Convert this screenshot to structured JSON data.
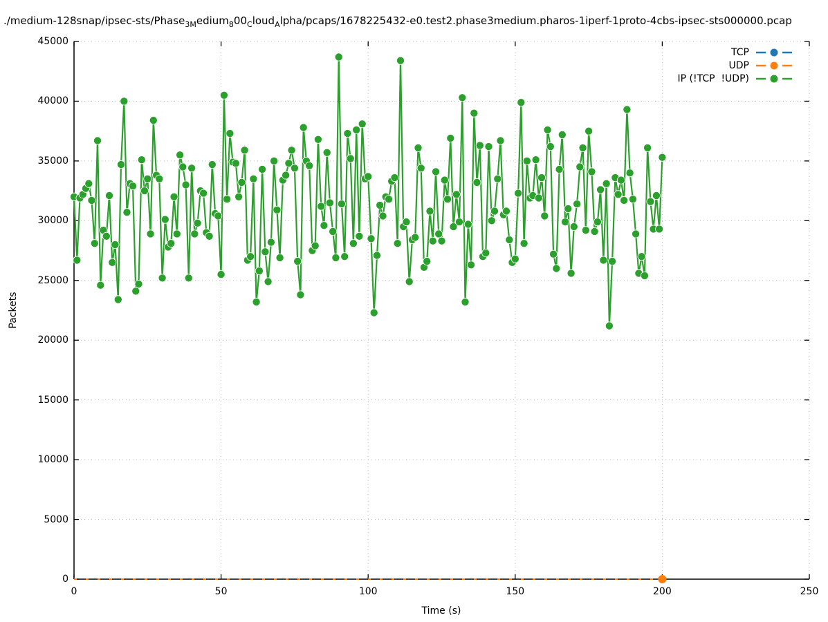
{
  "title": {
    "segments": [
      {
        "text": "./medium-128snap/ipsec-sts/Phase",
        "sub": false
      },
      {
        "text": "3M",
        "sub": true
      },
      {
        "text": "edium",
        "sub": false
      },
      {
        "text": "8",
        "sub": true
      },
      {
        "text": "00",
        "sub": false
      },
      {
        "text": "C",
        "sub": true
      },
      {
        "text": "loud",
        "sub": false
      },
      {
        "text": "A",
        "sub": true
      },
      {
        "text": "lpha/pcaps/1678225432-e0.test2.phase3medium.pharos-1iperf-1proto-4cbs-ipsec-sts000000.pcap",
        "sub": false
      }
    ]
  },
  "legend": {
    "items": [
      {
        "label": "TCP",
        "color": "#1f77b4"
      },
      {
        "label": "UDP",
        "color": "#ff7f0e"
      },
      {
        "label": "IP (!TCP  !UDP)",
        "color": "#2ca02c"
      }
    ]
  },
  "chart_data": {
    "type": "line",
    "title_plain": "./medium-128snap/ipsec-sts/Phase_3Medium_800_Cloud_Alpha/pcaps/1678225432-e0.test2.phase3medium.pharos-1iperf-1proto-4cbs-ipsec-sts000000.pcap",
    "xlabel": "Time (s)",
    "ylabel": "Packets",
    "xlim": [
      0,
      250
    ],
    "ylim": [
      0,
      45000
    ],
    "x_ticks": [
      0,
      50,
      100,
      150,
      200,
      250
    ],
    "y_ticks": [
      0,
      5000,
      10000,
      15000,
      20000,
      25000,
      30000,
      35000,
      40000,
      45000
    ],
    "grid": "dotted",
    "grid_color": "#bdbdbd",
    "legend_position": "top-right-inside",
    "series": [
      {
        "name": "TCP",
        "color": "#1f77b4",
        "style": "flat",
        "x": [
          0,
          200
        ],
        "y": [
          0,
          0
        ]
      },
      {
        "name": "UDP",
        "color": "#ff7f0e",
        "style": "flat",
        "x": [
          0,
          200
        ],
        "y": [
          0,
          0
        ],
        "end_marker": true
      },
      {
        "name": "IP (!TCP  !UDP)",
        "color": "#2ca02c",
        "x_start": 0,
        "x_step": 1,
        "values": [
          32000,
          26700,
          31900,
          32200,
          32700,
          33100,
          31700,
          28100,
          36700,
          24600,
          29200,
          28700,
          32100,
          26500,
          28000,
          23400,
          34700,
          40000,
          30700,
          33100,
          32900,
          24100,
          24700,
          35100,
          32500,
          33500,
          28900,
          38400,
          33800,
          33500,
          25200,
          30100,
          27800,
          28100,
          32000,
          28900,
          35500,
          34500,
          33000,
          25200,
          34400,
          28900,
          29800,
          32500,
          32300,
          29000,
          28700,
          34700,
          30600,
          30400,
          25500,
          40500,
          31800,
          37300,
          34900,
          34800,
          32000,
          33200,
          35900,
          26700,
          27000,
          33500,
          23200,
          25800,
          34300,
          27400,
          24900,
          28200,
          35000,
          30900,
          26900,
          33400,
          33800,
          34800,
          35900,
          34400,
          26600,
          23800,
          37800,
          35000,
          34600,
          27500,
          27900,
          36800,
          31200,
          29600,
          35700,
          31500,
          29100,
          26900,
          43700,
          31400,
          27000,
          37300,
          35200,
          28100,
          37600,
          28700,
          38100,
          33500,
          33700,
          28500,
          22300,
          27100,
          31300,
          30400,
          32000,
          31800,
          33300,
          33600,
          28100,
          43400,
          29500,
          29900,
          24900,
          28400,
          28600,
          36100,
          34400,
          26100,
          26600,
          30800,
          28300,
          34100,
          28900,
          28300,
          33400,
          31800,
          36900,
          29500,
          32200,
          29900,
          40300,
          23200,
          29700,
          26300,
          39000,
          33200,
          36300,
          27000,
          27300,
          36200,
          30000,
          30800,
          33500,
          36700,
          30500,
          30800,
          28400,
          26500,
          26800,
          32300,
          39900,
          28100,
          35000,
          31900,
          32100,
          35100,
          31900,
          33600,
          30400,
          37600,
          36200,
          27200,
          26000,
          34300,
          37200,
          29900,
          31000,
          25600,
          29500,
          31400,
          34500,
          36100,
          29200,
          37500,
          34100,
          29100,
          29900,
          32600,
          26700,
          33100,
          21200,
          26600,
          33600,
          32200,
          33400,
          31700,
          39300,
          34000,
          31800,
          28900,
          25600,
          27000,
          25400,
          36100,
          31600,
          29300,
          32100,
          29300,
          35300
        ]
      }
    ]
  }
}
